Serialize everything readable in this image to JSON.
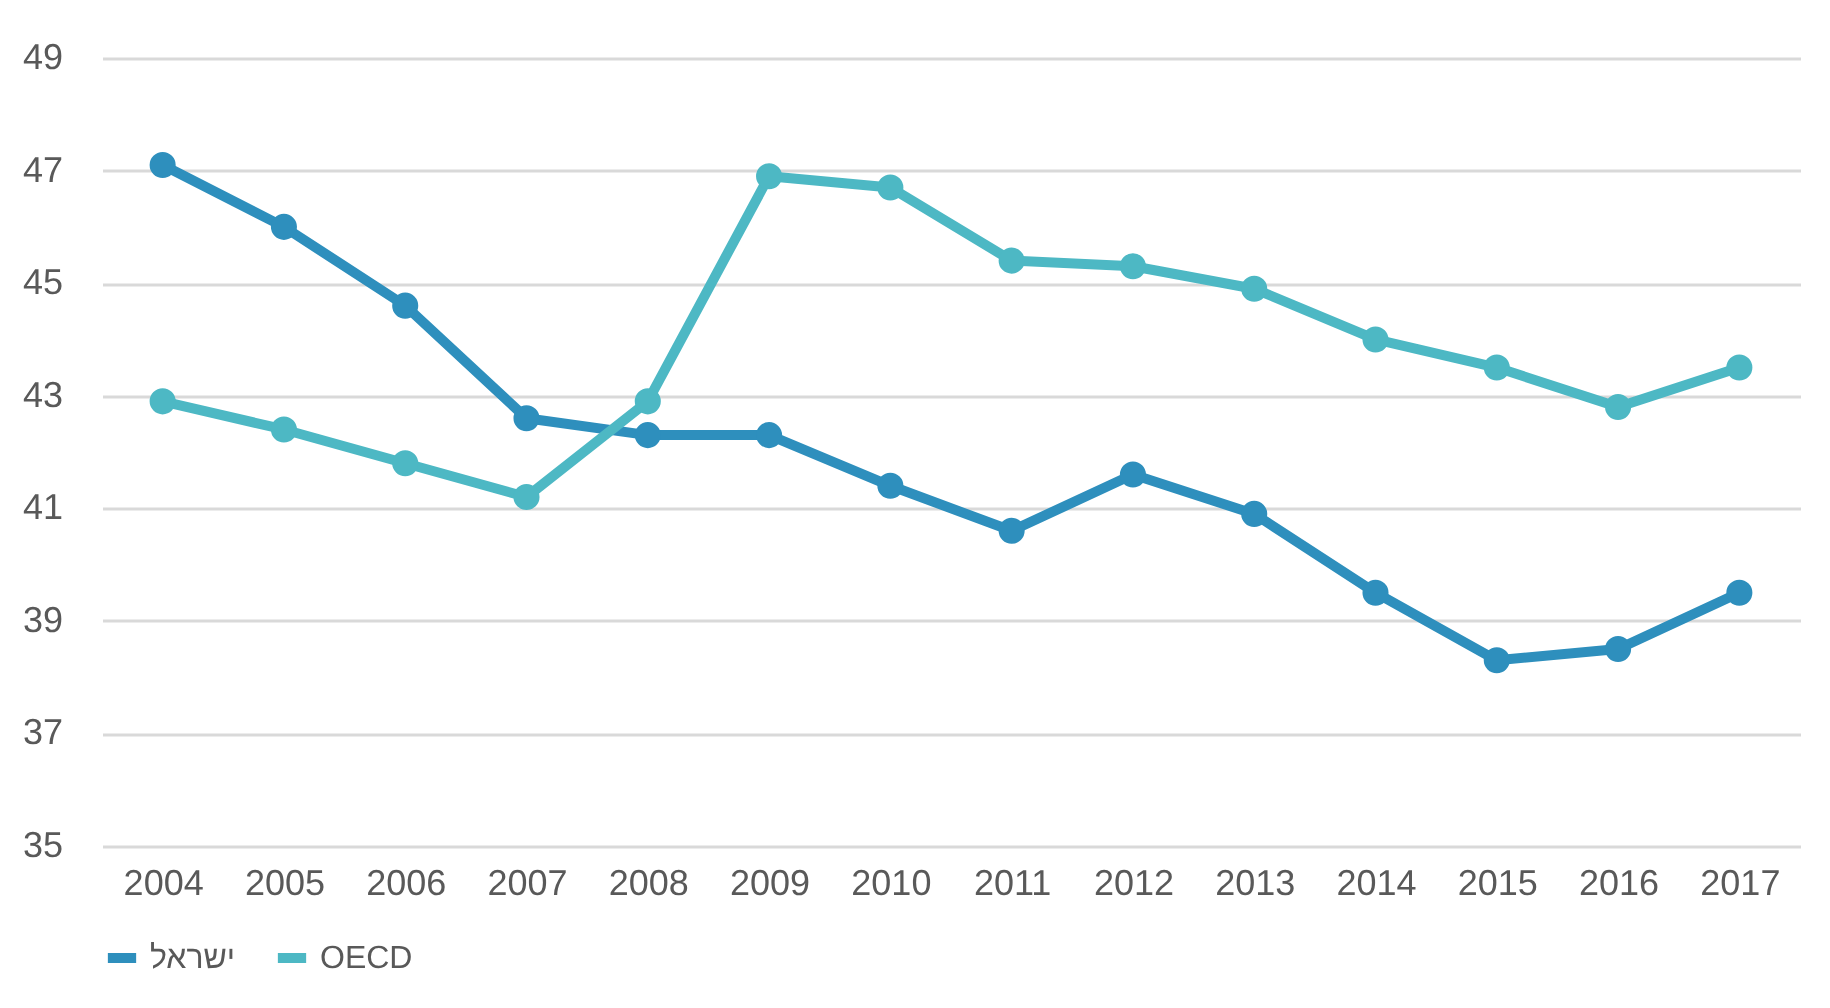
{
  "chart_data": {
    "type": "line",
    "categories": [
      "2004",
      "2005",
      "2006",
      "2007",
      "2008",
      "2009",
      "2010",
      "2011",
      "2012",
      "2013",
      "2014",
      "2015",
      "2016",
      "2017"
    ],
    "series": [
      {
        "name": "ישראל",
        "color": "#2e8fbd",
        "values": [
          47.1,
          46.0,
          44.6,
          42.6,
          42.3,
          42.3,
          41.4,
          40.6,
          41.6,
          40.9,
          39.5,
          38.3,
          38.5,
          39.5
        ]
      },
      {
        "name": "OECD",
        "color": "#4db8c4",
        "values": [
          42.9,
          42.4,
          41.8,
          41.2,
          42.9,
          46.9,
          46.7,
          45.4,
          45.3,
          44.9,
          44.0,
          43.5,
          42.8,
          43.5
        ]
      }
    ],
    "ylim": [
      35,
      49
    ],
    "yticks": [
      35,
      37,
      39,
      41,
      43,
      45,
      47,
      49
    ],
    "grid": "y",
    "legend": "bottom",
    "marker": "circle",
    "line_style": "solid"
  }
}
